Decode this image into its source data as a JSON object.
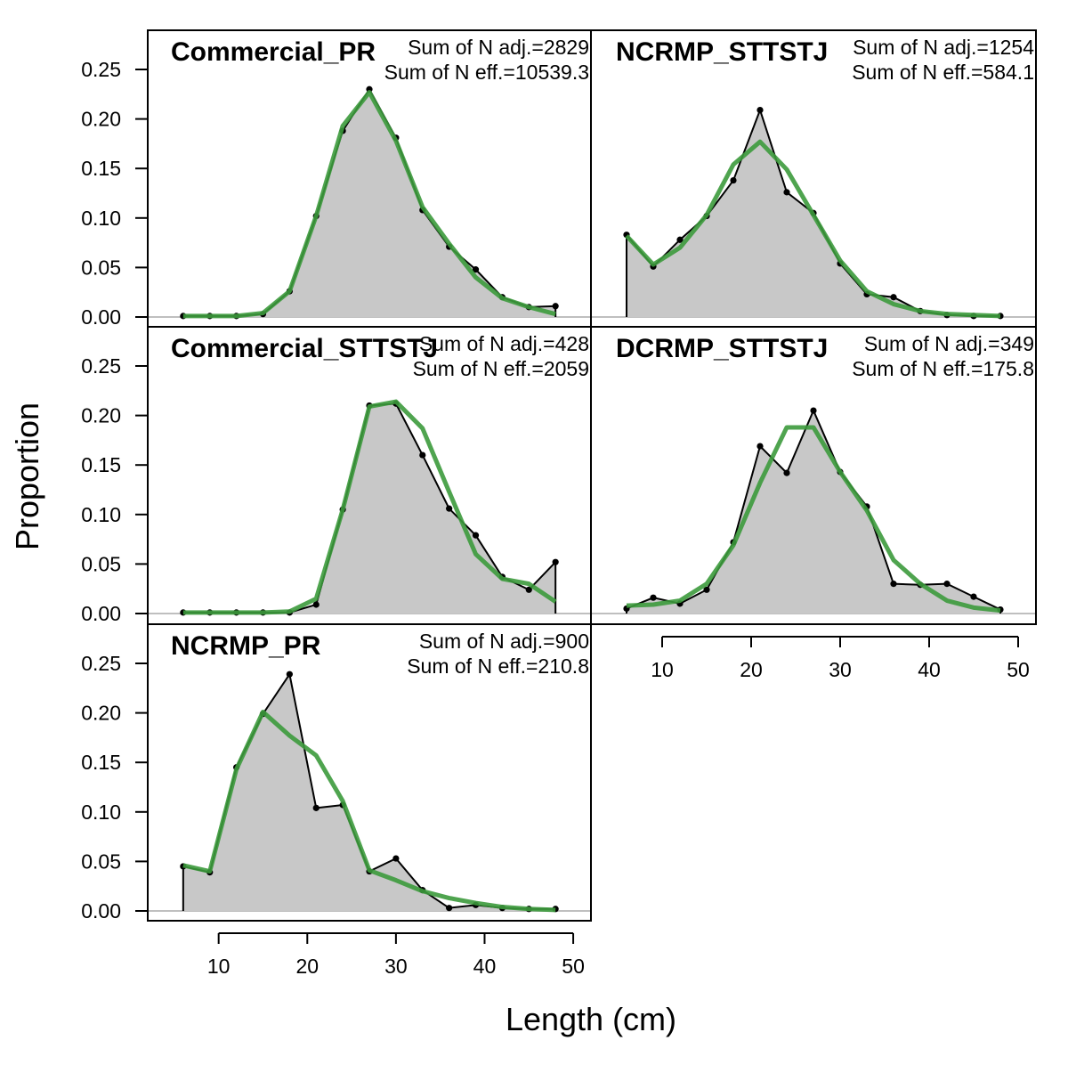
{
  "chart_data": {
    "type": "area",
    "ylabel": "Proportion",
    "xlabel": "Length (cm)",
    "xlim": [
      2,
      52
    ],
    "ylim": [
      -0.012,
      0.29
    ],
    "x_ticks": [
      10,
      20,
      30,
      40,
      50
    ],
    "y_ticks": [
      0.0,
      0.05,
      0.1,
      0.15,
      0.2,
      0.25
    ],
    "y_tick_labels": [
      "0.00",
      "0.05",
      "0.10",
      "0.15",
      "0.20",
      "0.25"
    ],
    "colors": {
      "observed_fill": "#c8c8c8",
      "observed_line": "#000000",
      "expected_line": "#3c9a3c",
      "zero_line": "#bfbfbf"
    },
    "grid": false,
    "legend": "none",
    "x": [
      6,
      9,
      12,
      15,
      18,
      21,
      24,
      27,
      30,
      33,
      36,
      39,
      42,
      45,
      48
    ],
    "panels": [
      {
        "name": "Commercial_PR",
        "n_adj": "Sum of N adj.=2829",
        "n_eff": "Sum of N eff.=10539.3",
        "observed": [
          0.001,
          0.001,
          0.001,
          0.003,
          0.026,
          0.102,
          0.188,
          0.23,
          0.181,
          0.108,
          0.071,
          0.048,
          0.02,
          0.01,
          0.011
        ],
        "expected": [
          0.001,
          0.001,
          0.001,
          0.004,
          0.026,
          0.102,
          0.193,
          0.227,
          0.178,
          0.111,
          0.074,
          0.04,
          0.019,
          0.01,
          0.003
        ]
      },
      {
        "name": "NCRMP_STTSTJ",
        "n_adj": "Sum of N adj.=1254",
        "n_eff": "Sum of N eff.=584.1",
        "observed": [
          0.083,
          0.051,
          0.078,
          0.102,
          0.138,
          0.209,
          0.126,
          0.105,
          0.054,
          0.023,
          0.02,
          0.006,
          0.002,
          0.001,
          0.001
        ],
        "expected": [
          0.082,
          0.053,
          0.07,
          0.103,
          0.154,
          0.177,
          0.149,
          0.103,
          0.057,
          0.026,
          0.013,
          0.006,
          0.003,
          0.002,
          0.001
        ]
      },
      {
        "name": "Commercial_STTSTJ",
        "n_adj": "Sum of N adj.=428",
        "n_eff": "Sum of N eff.=2059",
        "observed": [
          0.001,
          0.001,
          0.001,
          0.001,
          0.001,
          0.009,
          0.105,
          0.21,
          0.212,
          0.16,
          0.106,
          0.079,
          0.037,
          0.024,
          0.052
        ],
        "expected": [
          0.001,
          0.001,
          0.001,
          0.001,
          0.002,
          0.015,
          0.105,
          0.209,
          0.214,
          0.187,
          0.123,
          0.06,
          0.035,
          0.03,
          0.012
        ]
      },
      {
        "name": "DCRMP_STTSTJ",
        "n_adj": "Sum of N adj.=349",
        "n_eff": "Sum of N eff.=175.8",
        "observed": [
          0.005,
          0.016,
          0.01,
          0.024,
          0.072,
          0.169,
          0.142,
          0.205,
          0.143,
          0.108,
          0.03,
          0.029,
          0.03,
          0.017,
          0.004
        ],
        "expected": [
          0.008,
          0.009,
          0.013,
          0.03,
          0.069,
          0.132,
          0.188,
          0.188,
          0.143,
          0.104,
          0.054,
          0.03,
          0.013,
          0.006,
          0.003
        ]
      },
      {
        "name": "NCRMP_PR",
        "n_adj": "Sum of N adj.=900",
        "n_eff": "Sum of N eff.=210.8",
        "observed": [
          0.045,
          0.039,
          0.145,
          0.199,
          0.239,
          0.104,
          0.107,
          0.04,
          0.053,
          0.021,
          0.003,
          0.006,
          0.003,
          0.002,
          0.002
        ],
        "expected": [
          0.046,
          0.04,
          0.143,
          0.201,
          0.177,
          0.157,
          0.111,
          0.041,
          0.031,
          0.02,
          0.013,
          0.008,
          0.004,
          0.002,
          0.001
        ]
      }
    ]
  }
}
